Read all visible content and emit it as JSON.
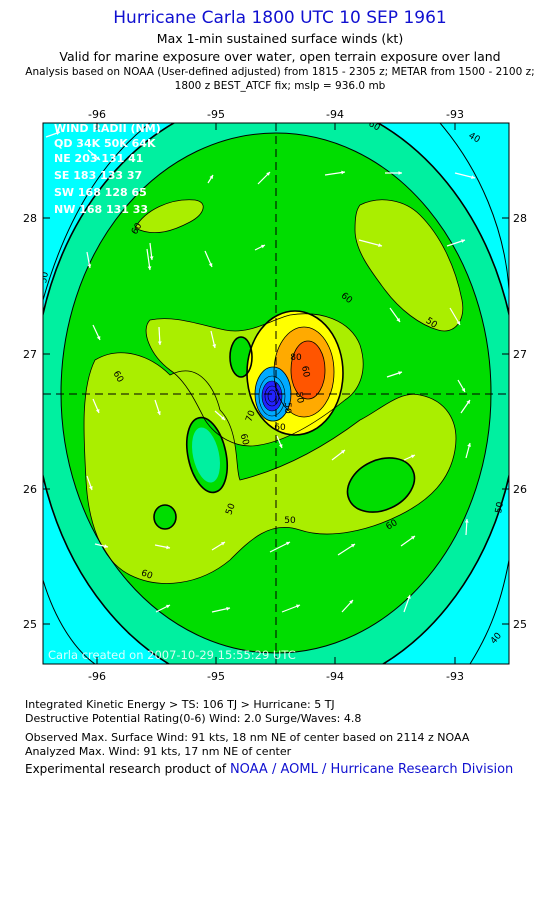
{
  "header": {
    "title": "Hurricane Carla 1800 UTC 10 SEP 1961",
    "line1": "Max 1-min sustained surface winds (kt)",
    "line2": "Valid for marine exposure over water, open terrain exposure over land",
    "line3": "Analysis based on  NOAA (User-defined adjusted) from 1815 - 2305 z;  METAR from 1500 - 2100 z;",
    "line4": "1800 z BEST_ATCF fix; mslp = 936.0 mb"
  },
  "map": {
    "lon_ticks": [
      "-96",
      "-95",
      "-94",
      "-93"
    ],
    "lat_ticks": [
      "28",
      "27",
      "26",
      "25"
    ],
    "contour_labels": [
      "60",
      "50",
      "40",
      "60",
      "60",
      "50",
      "60",
      "60",
      "50",
      "50",
      "60",
      "60",
      "50",
      "50",
      "40",
      "40",
      "60",
      "50",
      "60",
      "70",
      "80"
    ],
    "wind_radii": {
      "title": "WIND RADII (NM)",
      "header": "QD  34K  50K  64K",
      "rows": [
        "NE  203  131   41",
        "SE  183  133   37",
        "SW  168  128   65",
        "NW  168  131   33"
      ]
    },
    "credit": "Carla  created on 2007-10-29 15:55:29 UTC",
    "colors": {
      "cyan": "#00ffff",
      "aqua_green": "#00f0a0",
      "green": "#00dd00",
      "light_green": "#aaee00",
      "yellow": "#ffff00",
      "orange": "#ffaa00",
      "red_orange": "#ff5500",
      "blue": "#2222ff"
    }
  },
  "info": {
    "ike": "Integrated Kinetic Energy > TS: 106 TJ   > Hurricane: 5 TJ",
    "dp": "Destructive Potential Rating(0-6)   Wind: 2.0 Surge/Waves: 4.8",
    "obs": "Observed Max. Surface Wind: 91 kts, 18 nm NE of center based on 2114 z NOAA",
    "analyzed": "Analyzed Max. Wind: 91 kts, 17 nm NE of center",
    "footer_prefix": "Experimental research product of",
    "footer_link": "NOAA / AOML / Hurricane Research Division"
  }
}
